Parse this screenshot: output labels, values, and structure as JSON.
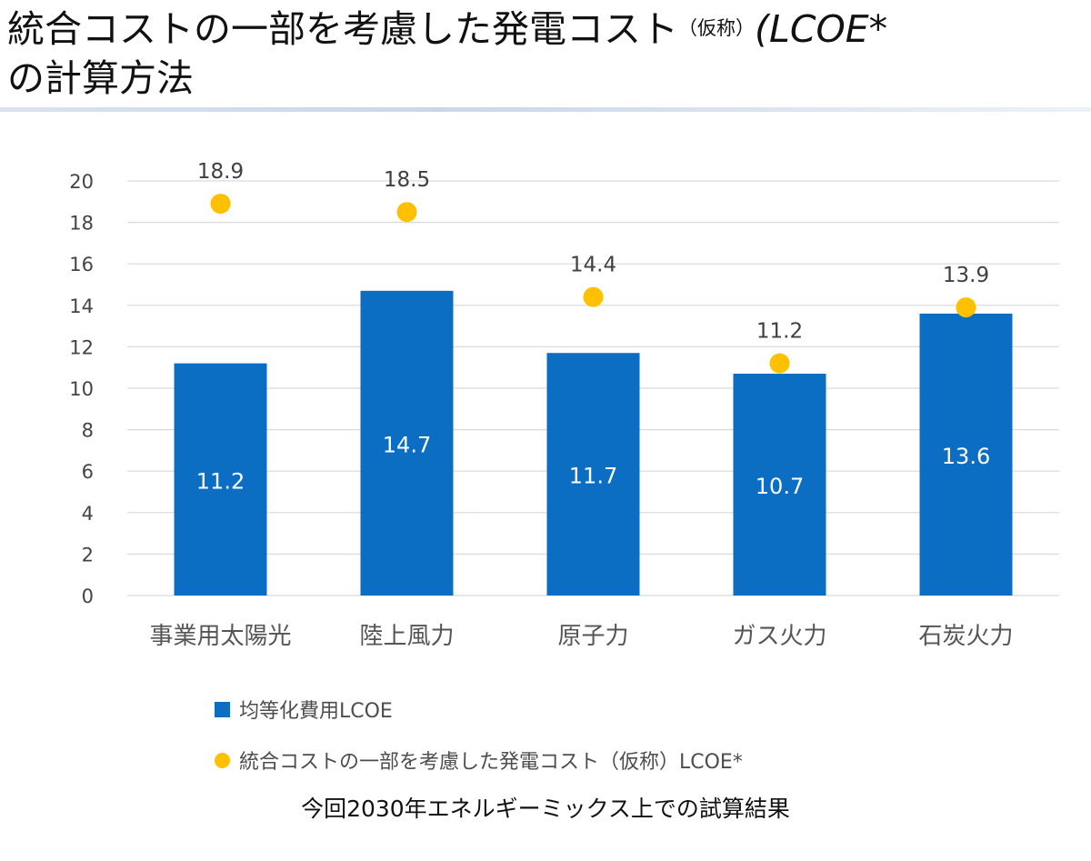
{
  "title": {
    "line1_main": "統合コストの一部を考慮した発電コスト",
    "line1_small": "（仮称）",
    "line1_suffix": "(LCOE*",
    "line2": "の計算方法"
  },
  "chart_data": {
    "type": "bar",
    "categories": [
      "事業用太陽光",
      "陸上風力",
      "原子力",
      "ガス火力",
      "石炭火力"
    ],
    "series": [
      {
        "name": "均等化費用LCOE",
        "kind": "bar",
        "color": "#0c6ec3",
        "values": [
          11.2,
          14.7,
          11.7,
          10.7,
          13.6
        ]
      },
      {
        "name": "統合コストの一部を考慮した発電コスト（仮称）LCOE*",
        "kind": "scatter",
        "color": "#ffc000",
        "values": [
          18.9,
          18.5,
          14.4,
          11.2,
          13.9
        ]
      }
    ],
    "ylim": [
      0,
      20
    ],
    "yticks": [
      0,
      2,
      4,
      6,
      8,
      10,
      12,
      14,
      16,
      18,
      20
    ],
    "grid": true,
    "legend_position": "bottom-left"
  },
  "footer": {
    "note": "今回2030年エネルギーミックス上での試算結果"
  },
  "colors": {
    "bar": "#0c6ec3",
    "marker": "#ffc000",
    "grid": "#d9d9d9"
  }
}
